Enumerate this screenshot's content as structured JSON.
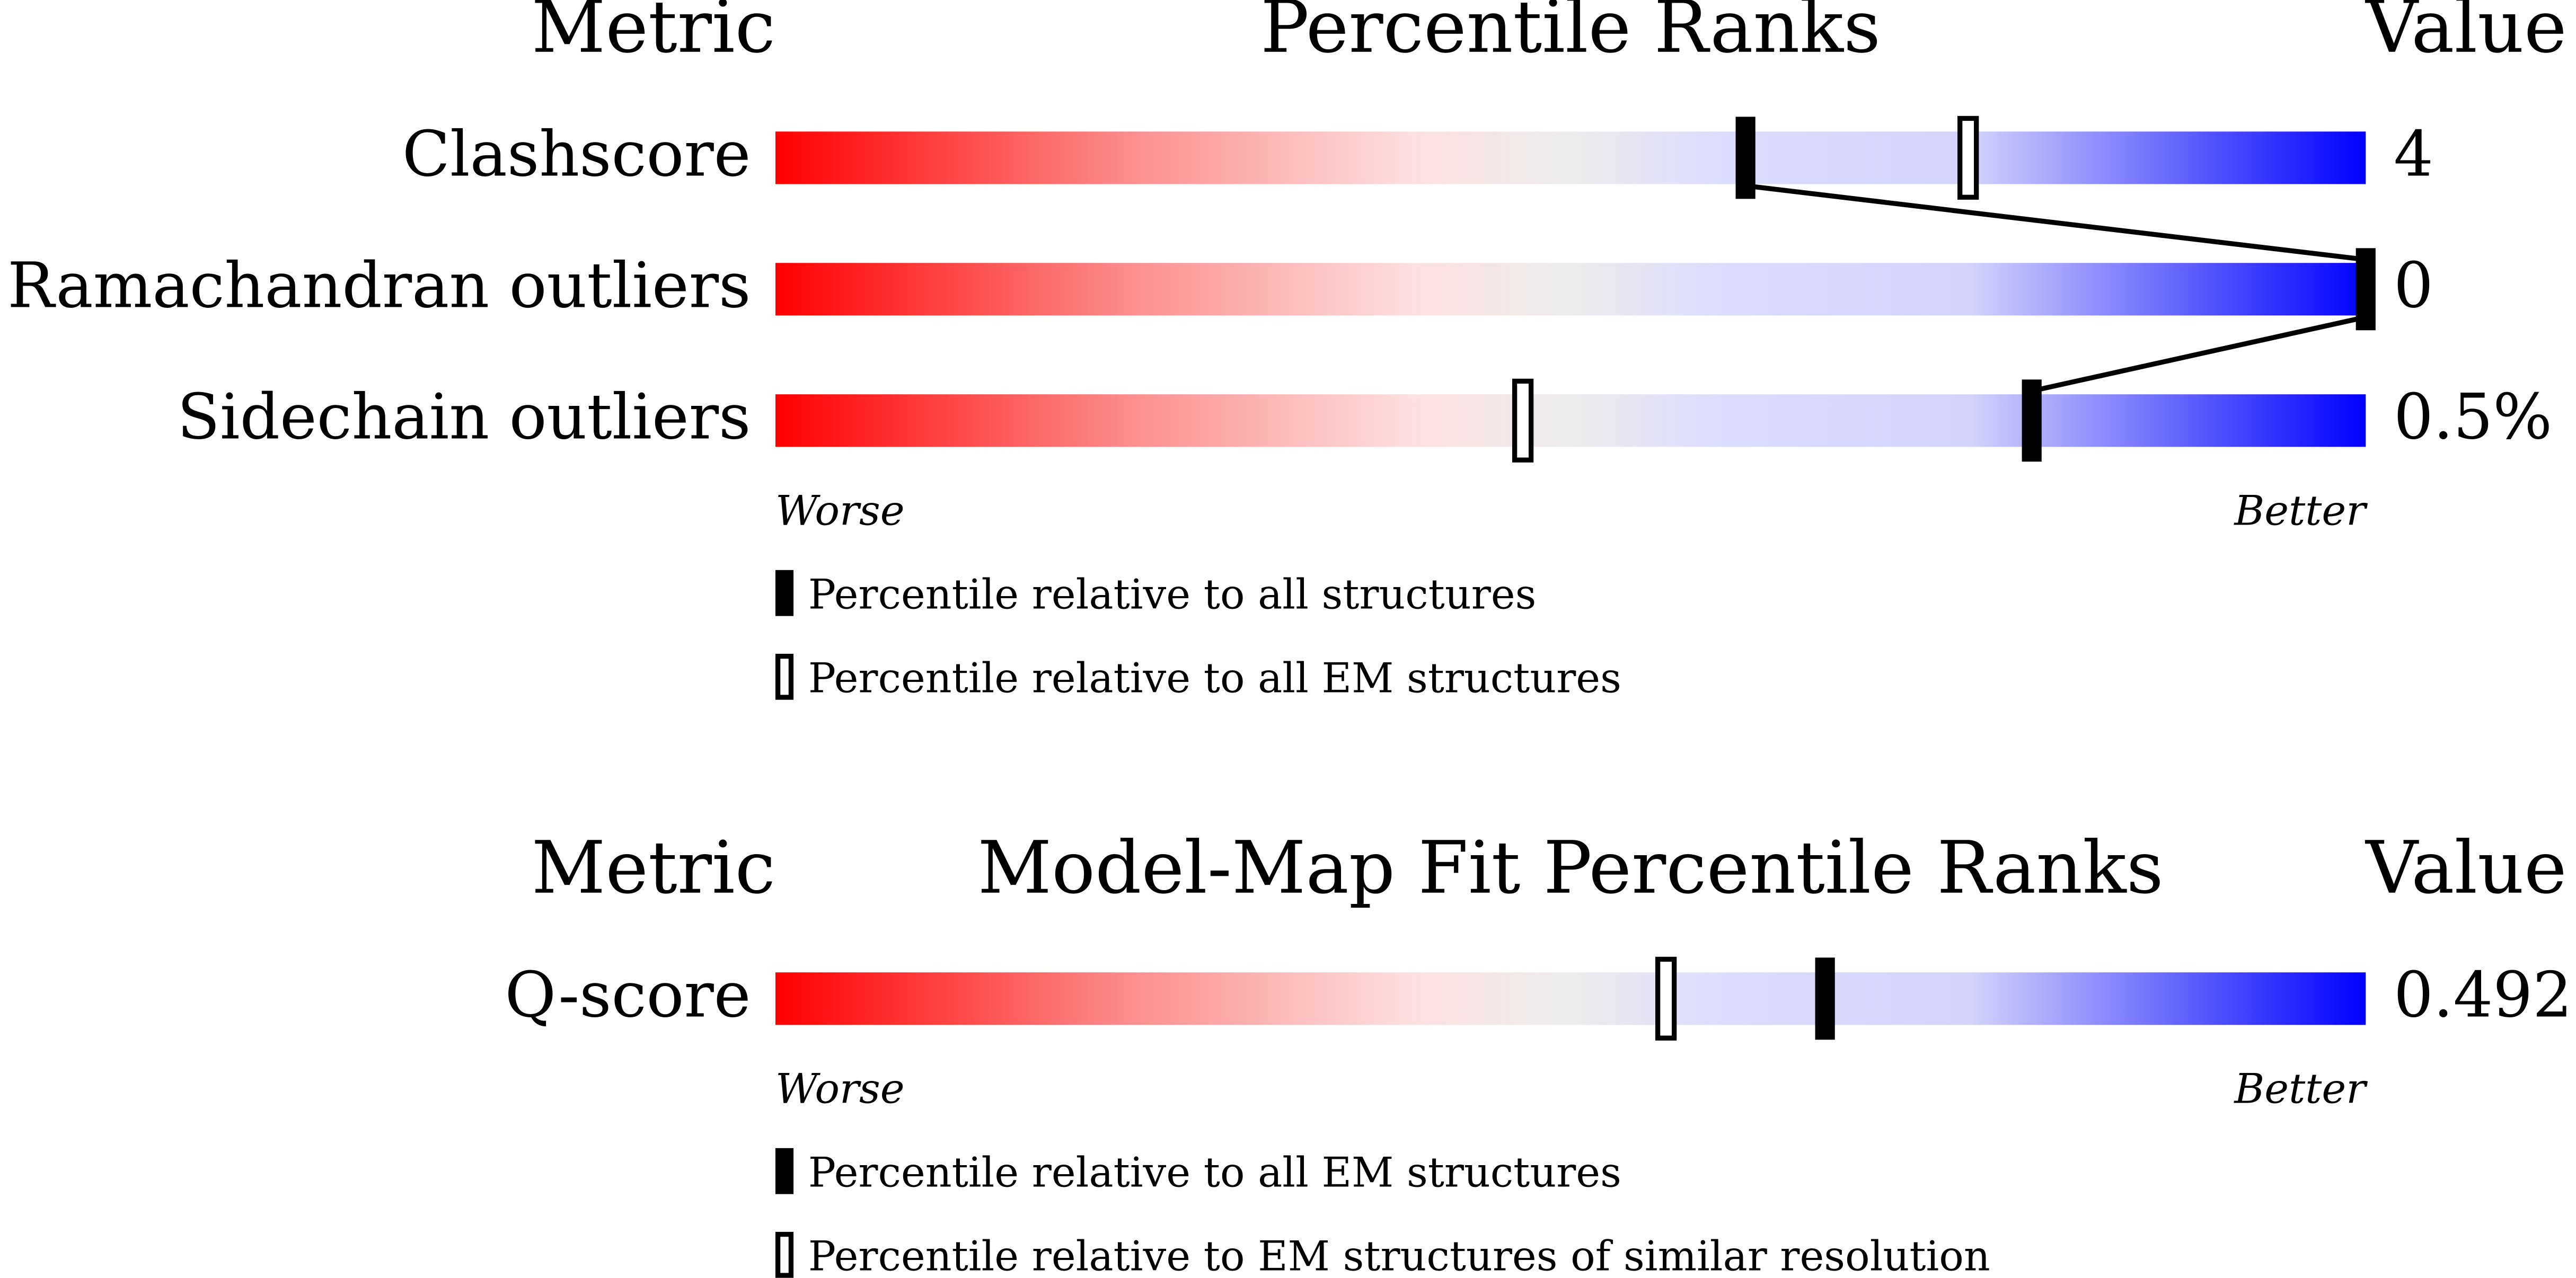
{
  "chart_data": [
    {
      "type": "percentile",
      "title": "Percentile Ranks",
      "metric_header": "Metric",
      "value_header": "Value",
      "xlim": [
        0,
        100
      ],
      "worse_label": "Worse",
      "better_label": "Better",
      "categories": [
        "Clashscore",
        "Ramachandran outliers",
        "Sidechain outliers"
      ],
      "values": [
        4,
        0,
        0.5
      ],
      "value_labels": [
        "4",
        "0",
        "0.5%"
      ],
      "series": [
        {
          "name": "Percentile relative to all structures",
          "style": "filled",
          "color": "#000000",
          "values": [
            61,
            100,
            79
          ]
        },
        {
          "name": "Percentile relative to all EM structures",
          "style": "open",
          "color": "#000000",
          "values": [
            75,
            null,
            47
          ]
        }
      ]
    },
    {
      "type": "percentile",
      "title": "Model-Map Fit Percentile Ranks",
      "metric_header": "Metric",
      "value_header": "Value",
      "xlim": [
        0,
        100
      ],
      "worse_label": "Worse",
      "better_label": "Better",
      "categories": [
        "Q-score"
      ],
      "values": [
        0.492
      ],
      "value_labels": [
        "0.492"
      ],
      "series": [
        {
          "name": "Percentile relative to all EM structures",
          "style": "filled",
          "color": "#000000",
          "values": [
            66
          ]
        },
        {
          "name": "Percentile relative to EM structures of similar resolution",
          "style": "open",
          "color": "#000000",
          "values": [
            56
          ]
        }
      ]
    }
  ]
}
